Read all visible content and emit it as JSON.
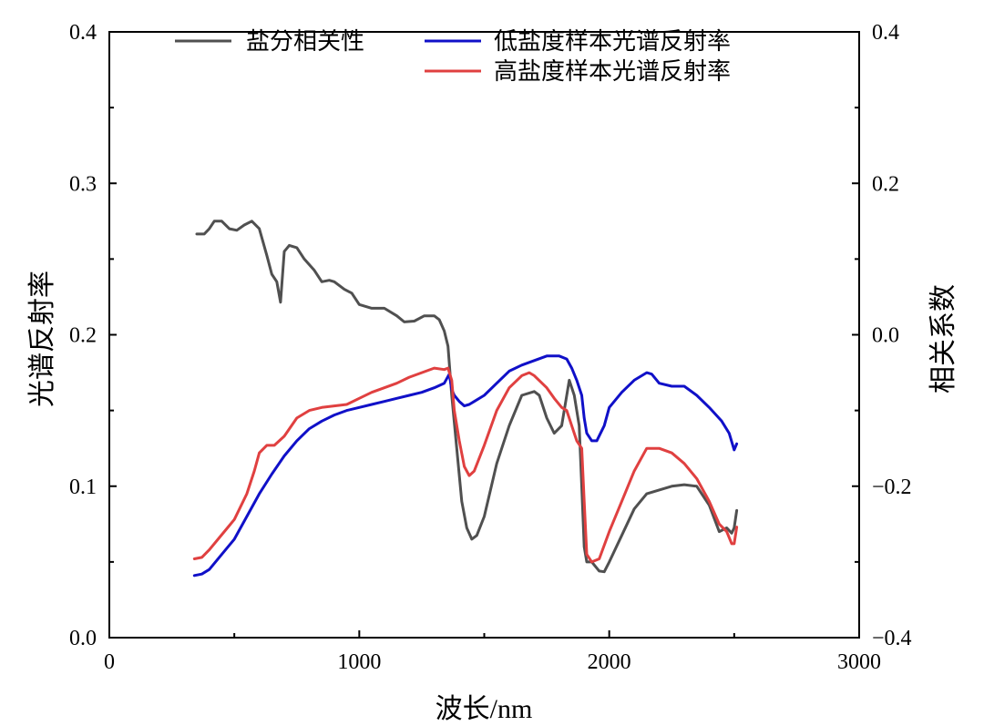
{
  "chart_data": {
    "type": "line",
    "xlabel": "波长/nm",
    "ylabel_left": "光谱反射率",
    "ylabel_right": "相关系数",
    "xlim": [
      0,
      3000
    ],
    "ylim_left": [
      0.0,
      0.4
    ],
    "ylim_right": [
      -0.4,
      0.4
    ],
    "x_ticks": [
      0,
      1000,
      2000,
      3000
    ],
    "y_ticks_left": [
      "0.0",
      "0.1",
      "0.2",
      "0.3",
      "0.4"
    ],
    "y_ticks_right": [
      "−0.4",
      "−0.2",
      "0.0",
      "0.2",
      "0.4"
    ],
    "y_ticks_left_values": [
      0.0,
      0.1,
      0.2,
      0.3,
      0.4
    ],
    "y_ticks_right_values": [
      -0.4,
      -0.2,
      0.0,
      0.2,
      0.4
    ],
    "grid": false,
    "legend_position": "top",
    "series": [
      {
        "name": "盐分相关性",
        "axis": "right",
        "color": "#505050",
        "x": [
          350,
          380,
          400,
          420,
          450,
          480,
          510,
          540,
          570,
          600,
          630,
          650,
          670,
          685,
          700,
          720,
          750,
          780,
          820,
          850,
          880,
          900,
          940,
          970,
          1000,
          1050,
          1100,
          1150,
          1180,
          1220,
          1260,
          1300,
          1320,
          1340,
          1355,
          1370,
          1390,
          1410,
          1430,
          1450,
          1470,
          1500,
          1550,
          1600,
          1650,
          1700,
          1720,
          1750,
          1780,
          1810,
          1840,
          1860,
          1870,
          1880,
          1890,
          1900,
          1910,
          1930,
          1960,
          1980,
          2000,
          2050,
          2100,
          2150,
          2200,
          2250,
          2300,
          2350,
          2400,
          2440,
          2470,
          2490,
          2500,
          2510
        ],
        "values": [
          0.133,
          0.133,
          0.14,
          0.15,
          0.15,
          0.14,
          0.138,
          0.145,
          0.15,
          0.14,
          0.105,
          0.08,
          0.07,
          0.043,
          0.11,
          0.118,
          0.115,
          0.1,
          0.085,
          0.07,
          0.072,
          0.07,
          0.06,
          0.055,
          0.04,
          0.035,
          0.035,
          0.025,
          0.017,
          0.018,
          0.025,
          0.025,
          0.02,
          0.005,
          -0.015,
          -0.08,
          -0.15,
          -0.22,
          -0.255,
          -0.27,
          -0.265,
          -0.24,
          -0.17,
          -0.12,
          -0.08,
          -0.075,
          -0.08,
          -0.11,
          -0.13,
          -0.12,
          -0.06,
          -0.08,
          -0.1,
          -0.12,
          -0.2,
          -0.28,
          -0.3,
          -0.3,
          -0.312,
          -0.313,
          -0.3,
          -0.265,
          -0.23,
          -0.21,
          -0.205,
          -0.2,
          -0.198,
          -0.2,
          -0.225,
          -0.26,
          -0.255,
          -0.262,
          -0.255,
          -0.232
        ]
      },
      {
        "name": "低盐度样本光谱反射率",
        "axis": "left",
        "color": "#1010c8",
        "x": [
          340,
          370,
          400,
          450,
          500,
          550,
          600,
          650,
          700,
          750,
          800,
          850,
          900,
          950,
          1000,
          1050,
          1100,
          1150,
          1200,
          1250,
          1300,
          1340,
          1360,
          1370,
          1380,
          1400,
          1420,
          1440,
          1460,
          1500,
          1550,
          1600,
          1650,
          1700,
          1750,
          1800,
          1830,
          1850,
          1870,
          1890,
          1900,
          1910,
          1930,
          1950,
          1980,
          2000,
          2050,
          2100,
          2150,
          2170,
          2200,
          2250,
          2300,
          2350,
          2400,
          2450,
          2480,
          2500,
          2510
        ],
        "values": [
          0.041,
          0.042,
          0.045,
          0.055,
          0.065,
          0.08,
          0.095,
          0.108,
          0.12,
          0.13,
          0.138,
          0.143,
          0.147,
          0.15,
          0.152,
          0.154,
          0.156,
          0.158,
          0.16,
          0.162,
          0.165,
          0.168,
          0.174,
          0.164,
          0.16,
          0.156,
          0.153,
          0.154,
          0.156,
          0.16,
          0.168,
          0.176,
          0.18,
          0.183,
          0.186,
          0.186,
          0.184,
          0.178,
          0.17,
          0.16,
          0.145,
          0.135,
          0.13,
          0.13,
          0.14,
          0.152,
          0.162,
          0.17,
          0.175,
          0.174,
          0.168,
          0.166,
          0.166,
          0.16,
          0.152,
          0.143,
          0.135,
          0.124,
          0.128
        ]
      },
      {
        "name": "高盐度样本光谱反射率",
        "axis": "left",
        "color": "#e04040",
        "x": [
          340,
          370,
          400,
          450,
          500,
          550,
          580,
          600,
          630,
          660,
          700,
          750,
          800,
          850,
          900,
          950,
          1000,
          1050,
          1100,
          1150,
          1200,
          1250,
          1300,
          1340,
          1355,
          1370,
          1380,
          1400,
          1420,
          1440,
          1460,
          1500,
          1550,
          1600,
          1650,
          1680,
          1700,
          1750,
          1780,
          1810,
          1830,
          1850,
          1870,
          1890,
          1900,
          1910,
          1930,
          1960,
          2000,
          2050,
          2100,
          2150,
          2200,
          2250,
          2300,
          2350,
          2400,
          2440,
          2470,
          2490,
          2500,
          2510
        ],
        "values": [
          0.052,
          0.053,
          0.058,
          0.068,
          0.078,
          0.095,
          0.11,
          0.122,
          0.127,
          0.127,
          0.133,
          0.145,
          0.15,
          0.152,
          0.153,
          0.154,
          0.158,
          0.162,
          0.165,
          0.168,
          0.172,
          0.175,
          0.178,
          0.177,
          0.178,
          0.17,
          0.15,
          0.13,
          0.113,
          0.107,
          0.11,
          0.127,
          0.15,
          0.165,
          0.173,
          0.175,
          0.173,
          0.165,
          0.158,
          0.152,
          0.15,
          0.14,
          0.13,
          0.125,
          0.09,
          0.055,
          0.05,
          0.052,
          0.07,
          0.09,
          0.11,
          0.125,
          0.125,
          0.122,
          0.115,
          0.105,
          0.09,
          0.075,
          0.07,
          0.062,
          0.062,
          0.073
        ]
      }
    ],
    "legend": [
      {
        "label": "盐分相关性",
        "color": "#505050"
      },
      {
        "label": "低盐度样本光谱反射率",
        "color": "#1010c8"
      },
      {
        "label": "高盐度样本光谱反射率",
        "color": "#e04040"
      }
    ]
  }
}
